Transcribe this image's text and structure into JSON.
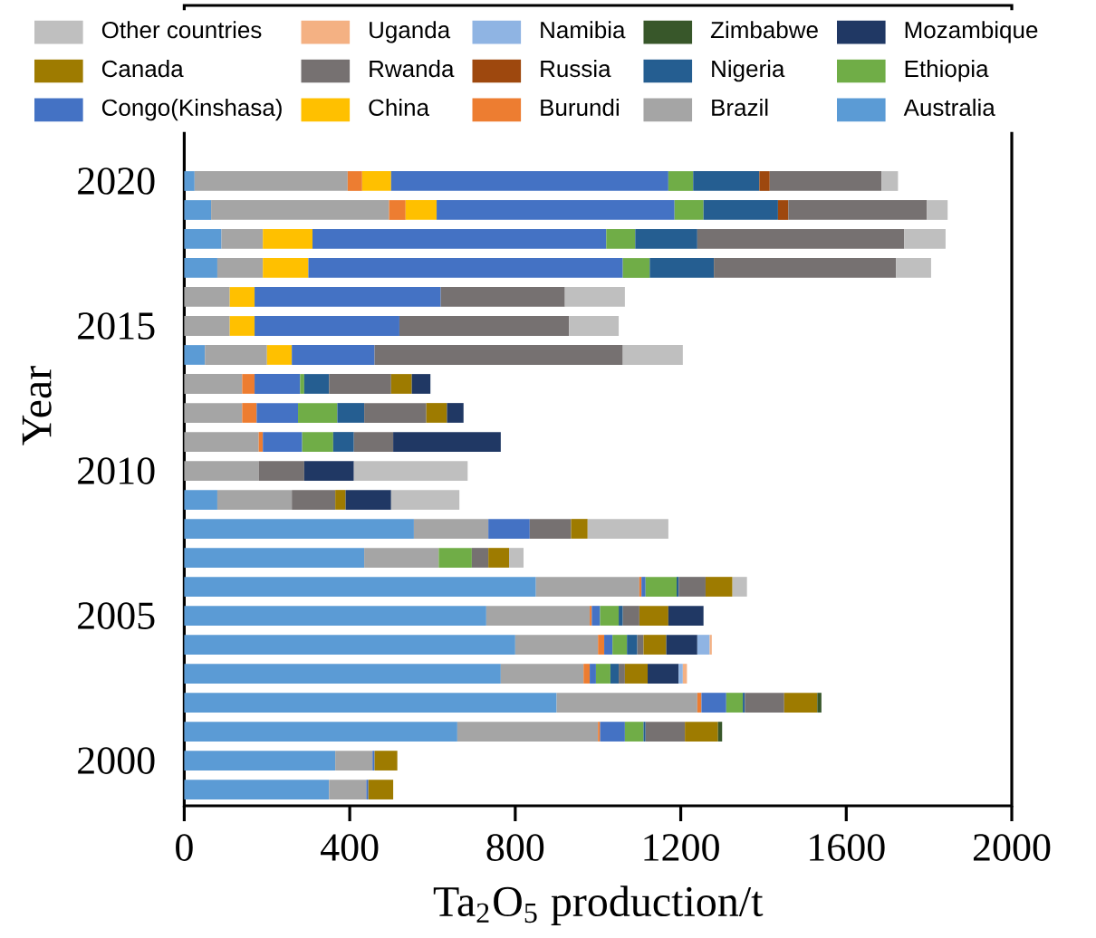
{
  "chart_data": {
    "type": "bar",
    "orientation": "horizontal",
    "stacked": true,
    "xlabel": "Ta$_{2}$O$_{5}$ production/t",
    "ylabel": "Year",
    "categories": [
      "2020",
      null,
      null,
      null,
      null,
      "2015",
      null,
      null,
      null,
      null,
      "2010",
      null,
      null,
      null,
      null,
      "2005",
      null,
      null,
      null,
      null,
      "2000",
      null
    ],
    "xlim": [
      0,
      2000
    ],
    "xticks": [
      0,
      400,
      800,
      1200,
      1600,
      2000
    ],
    "legend": "top",
    "series": [
      {
        "name": "Australia",
        "color": "#5b9bd5",
        "values": [
          25,
          65,
          90,
          80,
          null,
          null,
          50,
          null,
          null,
          null,
          null,
          80,
          555,
          435,
          850,
          730,
          800,
          765,
          900,
          660,
          365,
          350
        ]
      },
      {
        "name": "Brazil",
        "color": "#a5a5a5",
        "values": [
          370,
          430,
          100,
          110,
          110,
          110,
          150,
          140,
          140,
          180,
          180,
          180,
          180,
          180,
          250,
          250,
          200,
          200,
          340,
          340,
          90,
          90
        ]
      },
      {
        "name": "Burundi",
        "color": "#ed7d31",
        "values": [
          35,
          40,
          null,
          null,
          null,
          null,
          null,
          30,
          35,
          10,
          null,
          null,
          null,
          null,
          5,
          5,
          15,
          15,
          10,
          5,
          null,
          null
        ]
      },
      {
        "name": "China",
        "color": "#ffc000",
        "values": [
          70,
          75,
          120,
          110,
          60,
          60,
          60,
          null,
          null,
          null,
          null,
          null,
          null,
          null,
          null,
          null,
          null,
          null,
          null,
          null,
          null,
          null
        ]
      },
      {
        "name": "Congo(Kinshasa)",
        "color": "#4472c4",
        "values": [
          670,
          575,
          710,
          760,
          450,
          350,
          200,
          110,
          100,
          95,
          null,
          null,
          100,
          null,
          10,
          20,
          20,
          15,
          60,
          60,
          5,
          5
        ]
      },
      {
        "name": "Ethiopia",
        "color": "#70ad47",
        "values": [
          60,
          70,
          70,
          65,
          null,
          null,
          null,
          10,
          95,
          75,
          null,
          null,
          null,
          80,
          75,
          45,
          35,
          35,
          40,
          45,
          null,
          null
        ]
      },
      {
        "name": "Nigeria",
        "color": "#255e91",
        "values": [
          160,
          180,
          150,
          155,
          null,
          null,
          null,
          60,
          65,
          50,
          null,
          null,
          null,
          null,
          5,
          10,
          25,
          20,
          5,
          5,
          null,
          null
        ]
      },
      {
        "name": "Russia",
        "color": "#9e480e",
        "values": [
          25,
          25,
          null,
          null,
          null,
          null,
          null,
          null,
          null,
          null,
          null,
          null,
          null,
          null,
          null,
          null,
          null,
          null,
          null,
          null,
          null,
          null
        ]
      },
      {
        "name": "Rwanda",
        "color": "#767171",
        "values": [
          270,
          335,
          500,
          440,
          300,
          410,
          600,
          150,
          150,
          95,
          110,
          105,
          100,
          40,
          65,
          40,
          15,
          15,
          95,
          95,
          null,
          null
        ]
      },
      {
        "name": "Canada",
        "color": "#9e7b00",
        "values": [
          null,
          null,
          null,
          null,
          null,
          null,
          null,
          50,
          50,
          null,
          null,
          25,
          40,
          50,
          65,
          70,
          55,
          55,
          80,
          80,
          55,
          60
        ]
      },
      {
        "name": "Mozambique",
        "color": "#203864",
        "values": [
          null,
          null,
          null,
          null,
          null,
          null,
          null,
          45,
          40,
          260,
          120,
          110,
          null,
          null,
          null,
          85,
          75,
          75,
          null,
          null,
          null,
          null
        ]
      },
      {
        "name": "Zimbabwe",
        "color": "#38572a",
        "values": [
          null,
          null,
          null,
          null,
          null,
          null,
          null,
          null,
          null,
          null,
          null,
          null,
          null,
          null,
          null,
          null,
          null,
          null,
          10,
          10,
          null,
          null
        ]
      },
      {
        "name": "Namibia",
        "color": "#8fb4e3",
        "values": [
          null,
          null,
          null,
          null,
          null,
          null,
          null,
          null,
          null,
          null,
          null,
          null,
          null,
          null,
          null,
          null,
          30,
          10,
          null,
          null,
          null,
          null
        ]
      },
      {
        "name": "Uganda",
        "color": "#f4b183",
        "values": [
          null,
          null,
          null,
          null,
          null,
          null,
          null,
          null,
          null,
          null,
          null,
          null,
          null,
          null,
          null,
          null,
          5,
          10,
          null,
          null,
          null,
          null
        ]
      },
      {
        "name": "Other countries",
        "color": "#bfbfbf",
        "values": [
          40,
          50,
          100,
          85,
          145,
          120,
          145,
          null,
          null,
          null,
          275,
          165,
          195,
          35,
          35,
          null,
          null,
          null,
          null,
          null,
          null,
          null
        ]
      }
    ]
  }
}
